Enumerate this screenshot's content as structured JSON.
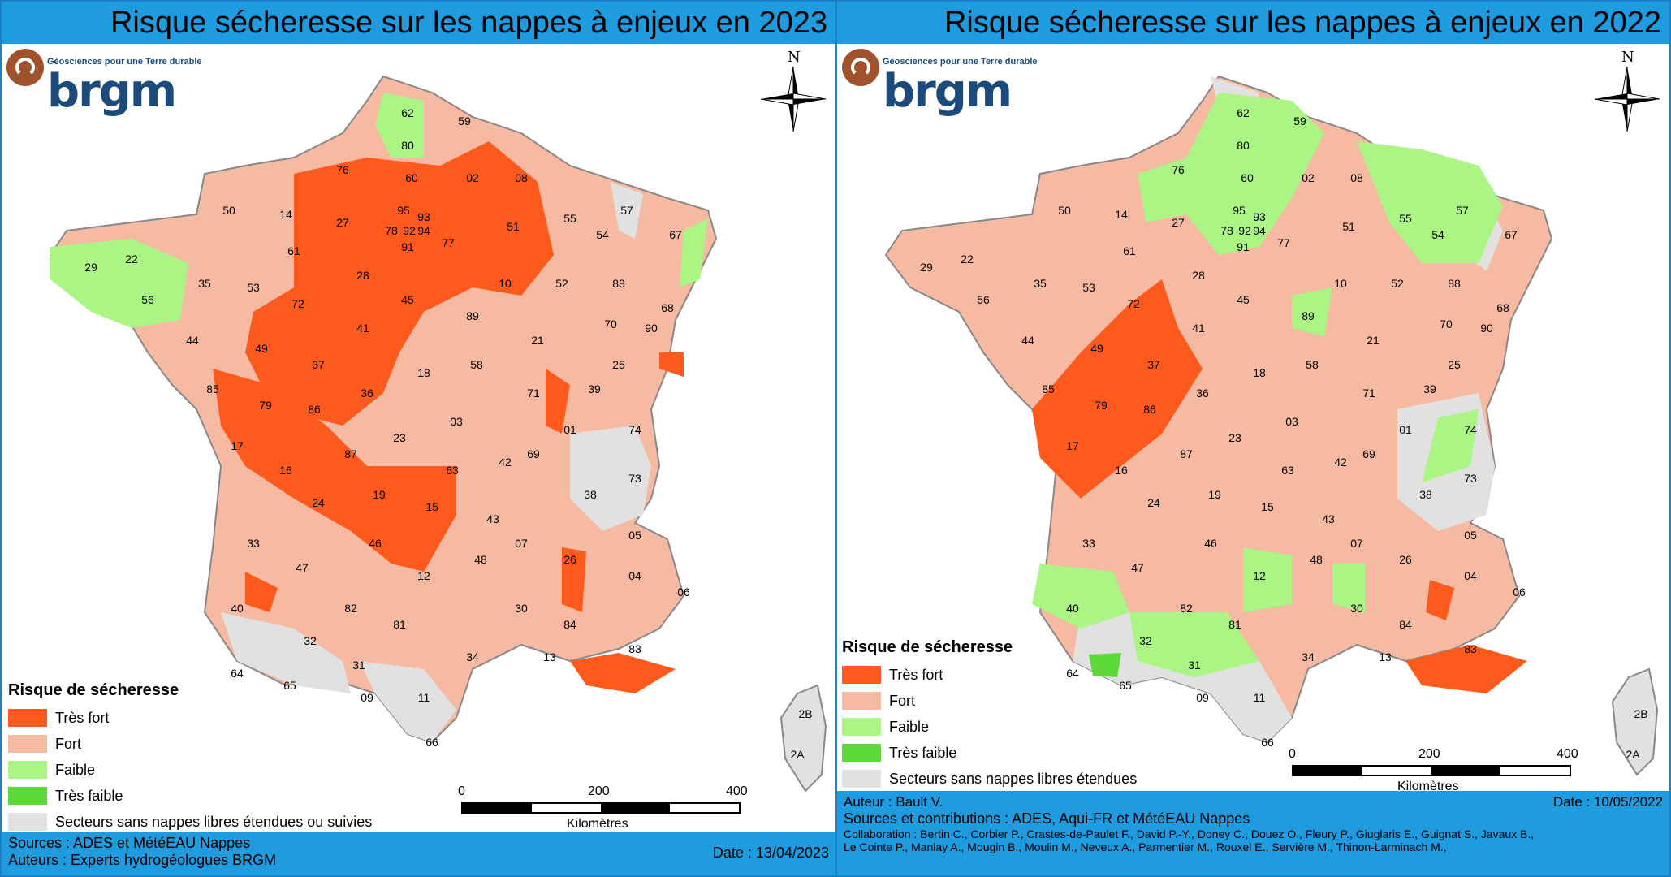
{
  "colors": {
    "tres_fort": "#fe5a1d",
    "fort": "#f6b9a2",
    "faible": "#aaf583",
    "tres_faible": "#5dd938",
    "sans_nappes": "#e1e1e1",
    "banner": "#1f9be0"
  },
  "left": {
    "title": "Risque sécheresse sur les nappes à enjeux en 2023",
    "logo": {
      "tagline": "Géosciences pour une Terre durable",
      "name": "brgm"
    },
    "north_label": "N",
    "legend": {
      "title": "Risque de sécheresse",
      "items": [
        {
          "label": "Très fort",
          "color": "#fe5a1d"
        },
        {
          "label": "Fort",
          "color": "#f6b9a2"
        },
        {
          "label": "Faible",
          "color": "#aaf583"
        },
        {
          "label": "Très faible",
          "color": "#5dd938"
        },
        {
          "label": "Secteurs sans nappes libres étendues ou suivies",
          "color": "#e1e1e1"
        }
      ]
    },
    "scale": {
      "ticks": [
        "0",
        "200",
        "400"
      ],
      "unit": "Kilomètres"
    },
    "footer": {
      "sources": "Sources : ADES et MétéEAU Nappes",
      "authors": "Auteurs : Experts hydrogéologues BRGM",
      "date": "Date : 13/04/2023"
    },
    "departments": [
      "62",
      "59",
      "80",
      "76",
      "60",
      "02",
      "08",
      "50",
      "14",
      "27",
      "95",
      "93",
      "78",
      "92",
      "94",
      "91",
      "77",
      "51",
      "55",
      "57",
      "67",
      "29",
      "22",
      "35",
      "56",
      "61",
      "28",
      "53",
      "72",
      "45",
      "10",
      "52",
      "54",
      "88",
      "89",
      "21",
      "70",
      "68",
      "90",
      "44",
      "49",
      "37",
      "41",
      "18",
      "58",
      "25",
      "39",
      "85",
      "79",
      "86",
      "36",
      "71",
      "01",
      "03",
      "17",
      "16",
      "87",
      "23",
      "63",
      "69",
      "74",
      "24",
      "19",
      "15",
      "42",
      "38",
      "73",
      "33",
      "46",
      "43",
      "07",
      "26",
      "05",
      "47",
      "12",
      "48",
      "04",
      "06",
      "40",
      "82",
      "81",
      "30",
      "84",
      "83",
      "13",
      "32",
      "31",
      "34",
      "64",
      "65",
      "09",
      "11",
      "66",
      "2B",
      "2A"
    ]
  },
  "right": {
    "title": "Risque sécheresse sur les nappes à enjeux en 2022",
    "logo": {
      "tagline": "Géosciences pour une Terre durable",
      "name": "brgm"
    },
    "north_label": "N",
    "legend": {
      "title": "Risque de sécheresse",
      "items": [
        {
          "label": "Très fort",
          "color": "#fe5a1d"
        },
        {
          "label": "Fort",
          "color": "#f6b9a2"
        },
        {
          "label": "Faible",
          "color": "#aaf583"
        },
        {
          "label": "Très faible",
          "color": "#5dd938"
        },
        {
          "label": "Secteurs sans nappes libres étendues",
          "color": "#e1e1e1"
        }
      ]
    },
    "scale": {
      "ticks": [
        "0",
        "200",
        "400"
      ],
      "unit": "Kilomètres"
    },
    "footer": {
      "author": "Auteur : Bault V.",
      "date": "Date : 10/05/2022",
      "sources": "Sources et contributions : ADES, Aqui-FR et MétéEAU Nappes",
      "collab1": "Collaboration : Bertin C., Corbier P., Crastes-de-Paulet F., David P.-Y., Doney C., Douez O., Fleury P., Giuglaris E., Guignat S., Javaux B.,",
      "collab2": "Le Cointe P., Manlay A., Mougin B., Moulin M., Neveux A., Parmentier M., Rouxel E., Servière M., Thinon-Larminach M.,"
    },
    "departments": [
      "62",
      "59",
      "80",
      "76",
      "60",
      "02",
      "08",
      "50",
      "14",
      "27",
      "95",
      "93",
      "78",
      "92",
      "94",
      "91",
      "77",
      "51",
      "55",
      "57",
      "67",
      "29",
      "22",
      "35",
      "56",
      "61",
      "28",
      "53",
      "72",
      "45",
      "10",
      "52",
      "54",
      "88",
      "89",
      "21",
      "70",
      "68",
      "90",
      "44",
      "49",
      "37",
      "41",
      "18",
      "58",
      "25",
      "39",
      "85",
      "79",
      "86",
      "36",
      "71",
      "01",
      "03",
      "17",
      "16",
      "87",
      "23",
      "63",
      "69",
      "74",
      "24",
      "19",
      "15",
      "42",
      "38",
      "73",
      "33",
      "46",
      "43",
      "07",
      "26",
      "05",
      "47",
      "12",
      "48",
      "04",
      "06",
      "40",
      "82",
      "81",
      "30",
      "84",
      "83",
      "13",
      "32",
      "31",
      "34",
      "64",
      "65",
      "09",
      "11",
      "66",
      "2B",
      "2A"
    ]
  }
}
